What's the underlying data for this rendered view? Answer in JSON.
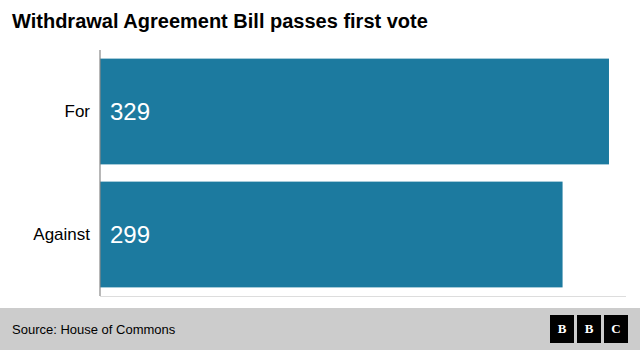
{
  "chart_data": {
    "type": "bar",
    "orientation": "horizontal",
    "title": "Withdrawal Agreement Bill passes first vote",
    "categories": [
      "For",
      "Against"
    ],
    "values": [
      329,
      299
    ],
    "color": "#1c7a9f",
    "xlim": [
      0,
      340
    ],
    "data_labels": true,
    "tick_labels": "y",
    "grid": false,
    "annotations": [
      "Source: House of Commons",
      "BBC"
    ]
  }
}
